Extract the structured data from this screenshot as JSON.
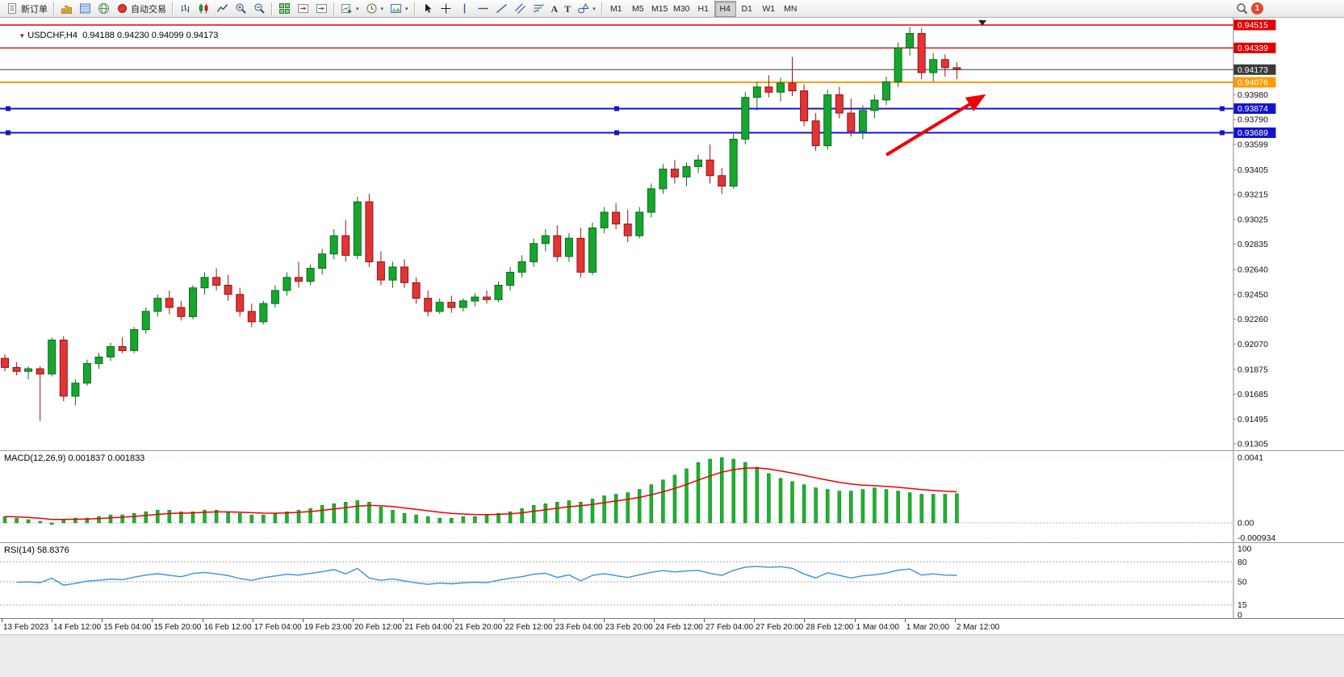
{
  "toolbar": {
    "new_order_label": "新订单",
    "autotrading_label": "自动交易",
    "timeframes": [
      "M1",
      "M5",
      "M15",
      "M30",
      "H1",
      "H4",
      "D1",
      "W1",
      "MN"
    ],
    "active_timeframe": "H4",
    "notification_count": "1",
    "caret_glyph": "▾",
    "text_tool_glyph": "A",
    "label_tool_glyph": "T",
    "one_click_glyph": "▼",
    "icons": [
      "new-order-icon",
      "charts-icon",
      "market-watch-icon",
      "navigator-icon",
      "autotrading-icon",
      "bar-chart-icon",
      "candlestick-chart-icon",
      "line-chart-icon",
      "zoom-in-icon",
      "zoom-out-icon",
      "tile-windows-icon",
      "chart-shift-icon",
      "auto-scroll-icon",
      "new-chart-icon",
      "periods-clock-icon",
      "template-icon",
      "cursor-icon",
      "crosshair-icon",
      "vertical-line-icon",
      "horizontal-line-icon",
      "trendline-icon",
      "channel-icon",
      "fibonacci-icon",
      "text-icon",
      "label-icon",
      "shapes-icon",
      "search-icon"
    ]
  },
  "chart": {
    "symbol_info": {
      "symbol": "USDCHF,H4",
      "ohlc": "0.94188 0.94230 0.94099 0.94173"
    },
    "scale_labels": [
      "0.93980",
      "0.93790",
      "0.93599",
      "0.93405",
      "0.93215",
      "0.93025",
      "0.92835",
      "0.92640",
      "0.92450",
      "0.92260",
      "0.92070",
      "0.91875",
      "0.91685",
      "0.91495",
      "0.91305"
    ],
    "lines": [
      {
        "name": "resistance-line-1",
        "price": 0.94515,
        "label": "0.94515",
        "color": "#e00000",
        "width": 1.4,
        "handles": false
      },
      {
        "name": "resistance-line-2",
        "price": 0.94339,
        "label": "0.94339",
        "color": "#e00000",
        "width": 1.4,
        "handles": false
      },
      {
        "name": "bid-price-line",
        "price": 0.94173,
        "label": "0.94173",
        "color": "#3a3a3a",
        "width": 1,
        "handles": false
      },
      {
        "name": "support-line-orange",
        "price": 0.94076,
        "label": "0.94076",
        "color": "#ff9c00",
        "width": 2,
        "handles": false
      },
      {
        "name": "support-line-blue-1",
        "price": 0.93874,
        "label": "0.93874",
        "color": "#1414cc",
        "width": 2,
        "handles": true
      },
      {
        "name": "support-line-blue-2",
        "price": 0.93689,
        "label": "0.93689",
        "color": "#1414cc",
        "width": 2,
        "handles": true
      }
    ]
  },
  "macd_panel": {
    "label": "MACD(12,26,9)",
    "values": "0.001837 0.001833",
    "axis_labels": [
      "0.0041",
      "0.00",
      "-0.000934"
    ]
  },
  "rsi_panel": {
    "label": "RSI(14)",
    "value": "58.8376",
    "axis_labels": [
      "100",
      "80",
      "50",
      "15",
      "0"
    ],
    "levels": [
      80,
      50,
      15
    ]
  },
  "chart_data": {
    "type": "candlestick",
    "symbol": "USDCHF",
    "timeframe": "H4",
    "ylim": [
      0.9126,
      0.9457
    ],
    "candles": [
      [
        0.9196,
        0.9199,
        0.9186,
        0.9189
      ],
      [
        0.9189,
        0.9193,
        0.9183,
        0.9186
      ],
      [
        0.9186,
        0.919,
        0.918,
        0.9188
      ],
      [
        0.9188,
        0.919,
        0.9148,
        0.9184
      ],
      [
        0.9184,
        0.9212,
        0.9182,
        0.921
      ],
      [
        0.921,
        0.9213,
        0.9163,
        0.9167
      ],
      [
        0.9167,
        0.918,
        0.916,
        0.9177
      ],
      [
        0.9177,
        0.9195,
        0.9175,
        0.9192
      ],
      [
        0.9192,
        0.92,
        0.9188,
        0.9197
      ],
      [
        0.9197,
        0.9208,
        0.9194,
        0.9205
      ],
      [
        0.9205,
        0.9212,
        0.92,
        0.9202
      ],
      [
        0.9202,
        0.922,
        0.92,
        0.9218
      ],
      [
        0.9218,
        0.9235,
        0.9215,
        0.9232
      ],
      [
        0.9232,
        0.9245,
        0.9228,
        0.9242
      ],
      [
        0.9242,
        0.9248,
        0.923,
        0.9235
      ],
      [
        0.9235,
        0.924,
        0.9225,
        0.9228
      ],
      [
        0.9228,
        0.9252,
        0.9226,
        0.925
      ],
      [
        0.925,
        0.9262,
        0.9245,
        0.9258
      ],
      [
        0.9258,
        0.9265,
        0.9248,
        0.9252
      ],
      [
        0.9252,
        0.926,
        0.924,
        0.9245
      ],
      [
        0.9245,
        0.925,
        0.9228,
        0.9232
      ],
      [
        0.9232,
        0.9238,
        0.922,
        0.9224
      ],
      [
        0.9224,
        0.924,
        0.9222,
        0.9238
      ],
      [
        0.9238,
        0.9252,
        0.9235,
        0.9248
      ],
      [
        0.9248,
        0.9262,
        0.9244,
        0.9258
      ],
      [
        0.9258,
        0.927,
        0.925,
        0.9255
      ],
      [
        0.9255,
        0.9268,
        0.9252,
        0.9265
      ],
      [
        0.9265,
        0.928,
        0.926,
        0.9276
      ],
      [
        0.9276,
        0.9295,
        0.9272,
        0.929
      ],
      [
        0.929,
        0.9302,
        0.927,
        0.9275
      ],
      [
        0.9275,
        0.932,
        0.9272,
        0.9316
      ],
      [
        0.9316,
        0.9322,
        0.9266,
        0.927
      ],
      [
        0.927,
        0.9278,
        0.9252,
        0.9256
      ],
      [
        0.9256,
        0.927,
        0.925,
        0.9266
      ],
      [
        0.9266,
        0.9272,
        0.925,
        0.9254
      ],
      [
        0.9254,
        0.9258,
        0.9238,
        0.9242
      ],
      [
        0.9242,
        0.9248,
        0.9228,
        0.9232
      ],
      [
        0.9232,
        0.9242,
        0.923,
        0.9239
      ],
      [
        0.9239,
        0.9244,
        0.9231,
        0.9235
      ],
      [
        0.9235,
        0.9242,
        0.9232,
        0.924
      ],
      [
        0.924,
        0.9246,
        0.9236,
        0.9243
      ],
      [
        0.9243,
        0.9248,
        0.9238,
        0.9241
      ],
      [
        0.9241,
        0.9255,
        0.9239,
        0.9252
      ],
      [
        0.9252,
        0.9266,
        0.9248,
        0.9262
      ],
      [
        0.9262,
        0.9275,
        0.9258,
        0.927
      ],
      [
        0.927,
        0.9288,
        0.9266,
        0.9284
      ],
      [
        0.9284,
        0.9295,
        0.9278,
        0.929
      ],
      [
        0.929,
        0.9298,
        0.927,
        0.9274
      ],
      [
        0.9274,
        0.9292,
        0.927,
        0.9288
      ],
      [
        0.9288,
        0.9296,
        0.9258,
        0.9262
      ],
      [
        0.9262,
        0.93,
        0.926,
        0.9296
      ],
      [
        0.9296,
        0.9312,
        0.9292,
        0.9308
      ],
      [
        0.9308,
        0.9315,
        0.9295,
        0.9299
      ],
      [
        0.9299,
        0.931,
        0.9285,
        0.929
      ],
      [
        0.929,
        0.9312,
        0.9288,
        0.9308
      ],
      [
        0.9308,
        0.933,
        0.9304,
        0.9326
      ],
      [
        0.9326,
        0.9345,
        0.9322,
        0.9341
      ],
      [
        0.9341,
        0.9348,
        0.933,
        0.9335
      ],
      [
        0.9335,
        0.9346,
        0.9328,
        0.9343
      ],
      [
        0.9343,
        0.9352,
        0.9338,
        0.9348
      ],
      [
        0.9348,
        0.936,
        0.933,
        0.9336
      ],
      [
        0.9336,
        0.9342,
        0.9322,
        0.9328
      ],
      [
        0.9328,
        0.9368,
        0.9326,
        0.9364
      ],
      [
        0.9364,
        0.94,
        0.936,
        0.9396
      ],
      [
        0.9396,
        0.9408,
        0.9386,
        0.9404
      ],
      [
        0.9404,
        0.9413,
        0.9396,
        0.94
      ],
      [
        0.94,
        0.9411,
        0.9393,
        0.9407
      ],
      [
        0.9407,
        0.9427,
        0.9397,
        0.9401
      ],
      [
        0.9401,
        0.9406,
        0.9374,
        0.9378
      ],
      [
        0.9378,
        0.9384,
        0.9355,
        0.9359
      ],
      [
        0.9359,
        0.9402,
        0.9356,
        0.9398
      ],
      [
        0.9398,
        0.9404,
        0.938,
        0.9384
      ],
      [
        0.9384,
        0.9395,
        0.9366,
        0.937
      ],
      [
        0.937,
        0.939,
        0.9364,
        0.9386
      ],
      [
        0.9386,
        0.9398,
        0.938,
        0.9394
      ],
      [
        0.9394,
        0.9412,
        0.939,
        0.9408
      ],
      [
        0.9408,
        0.9438,
        0.9404,
        0.9434
      ],
      [
        0.9434,
        0.945,
        0.9428,
        0.9445
      ],
      [
        0.9445,
        0.9449,
        0.941,
        0.9415
      ],
      [
        0.9415,
        0.943,
        0.9408,
        0.9425
      ],
      [
        0.9425,
        0.9429,
        0.9412,
        0.94188
      ],
      [
        0.94188,
        0.9423,
        0.94099,
        0.94173
      ]
    ],
    "macd_histogram": [
      0.0004,
      0.0003,
      0.0002,
      0.0001,
      -0.0001,
      0.0002,
      0.0003,
      0.0003,
      0.0004,
      0.0005,
      0.0005,
      0.0006,
      0.0007,
      0.0008,
      0.0008,
      0.0007,
      0.0007,
      0.0008,
      0.0008,
      0.0007,
      0.0006,
      0.0005,
      0.0005,
      0.0006,
      0.0007,
      0.0008,
      0.0009,
      0.0011,
      0.0012,
      0.0013,
      0.0014,
      0.0013,
      0.001,
      0.0008,
      0.0006,
      0.0005,
      0.0004,
      0.0003,
      0.0003,
      0.0004,
      0.0004,
      0.0005,
      0.0006,
      0.0007,
      0.0009,
      0.0011,
      0.0012,
      0.0013,
      0.0014,
      0.0013,
      0.0015,
      0.0017,
      0.0018,
      0.0019,
      0.0021,
      0.0024,
      0.0027,
      0.003,
      0.0034,
      0.0038,
      0.004,
      0.0041,
      0.004,
      0.0038,
      0.0035,
      0.0031,
      0.0028,
      0.0026,
      0.0024,
      0.0022,
      0.0021,
      0.002,
      0.002,
      0.0021,
      0.0022,
      0.0021,
      0.002,
      0.0019,
      0.0018,
      0.0018,
      0.0018,
      0.001837
    ],
    "time_labels": [
      "13 Feb 2023",
      "14 Feb 12:00",
      "15 Feb 04:00",
      "15 Feb 20:00",
      "16 Feb 12:00",
      "17 Feb 04:00",
      "19 Feb 23:00",
      "20 Feb 12:00",
      "21 Feb 04:00",
      "21 Feb 20:00",
      "22 Feb 12:00",
      "23 Feb 04:00",
      "23 Feb 20:00",
      "24 Feb 12:00",
      "27 Feb 04:00",
      "27 Feb 20:00",
      "28 Feb 12:00",
      "1 Mar 04:00",
      "1 Mar 20:00",
      "2 Mar 12:00"
    ],
    "annotations": [
      {
        "type": "arrow",
        "direction": "up-right",
        "color": "#f20000"
      }
    ]
  },
  "colors": {
    "up_fill": "#16a62e",
    "up_stroke": "#0b6b1d",
    "down_fill": "#e23434",
    "down_stro ke_unused": "",
    "down_stroke": "#8f1616",
    "macd_bar": "#1db32c",
    "macd_bar_stroke": "#0e7a1c",
    "macd_signal": "#f00000",
    "rsi_line": "#3f8fd9",
    "arrow": "#f20000",
    "axis_text": "#111111"
  }
}
